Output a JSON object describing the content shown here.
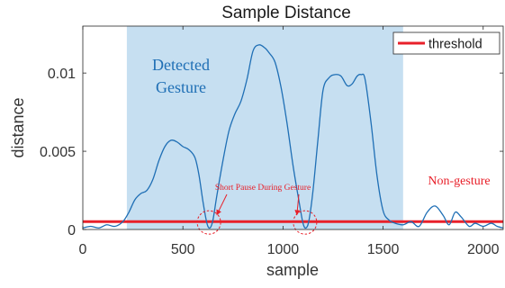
{
  "chart_data": {
    "type": "line",
    "title": "Sample Distance",
    "xlabel": "sample",
    "ylabel": "distance",
    "xlim": [
      0,
      2100
    ],
    "ylim": [
      0,
      0.013
    ],
    "xticks": [
      0,
      500,
      1000,
      1500,
      2000
    ],
    "xtick_labels": [
      "0",
      "500",
      "1000",
      "1500",
      "2000"
    ],
    "yticks": [
      0,
      0.005,
      0.01
    ],
    "ytick_labels": [
      "0",
      "0.005",
      "0.01"
    ],
    "grid": false,
    "legend": {
      "position": "top-right",
      "entries": [
        "threshold"
      ]
    },
    "threshold": {
      "name": "threshold",
      "value": 0.0005,
      "color": "#e8202a"
    },
    "series": [
      {
        "color": "#1f6fb5",
        "points": [
          [
            0,
            0.0001
          ],
          [
            40,
            0.0002
          ],
          [
            80,
            0.0001
          ],
          [
            120,
            0.0003
          ],
          [
            160,
            0.0002
          ],
          [
            200,
            0.0005
          ],
          [
            230,
            0.0011
          ],
          [
            260,
            0.0019
          ],
          [
            290,
            0.0023
          ],
          [
            320,
            0.0025
          ],
          [
            350,
            0.0032
          ],
          [
            380,
            0.0044
          ],
          [
            410,
            0.0053
          ],
          [
            440,
            0.0057
          ],
          [
            470,
            0.0056
          ],
          [
            500,
            0.0053
          ],
          [
            530,
            0.0051
          ],
          [
            560,
            0.0046
          ],
          [
            580,
            0.0035
          ],
          [
            600,
            0.0018
          ],
          [
            620,
            0.0004
          ],
          [
            635,
            0.0001
          ],
          [
            650,
            0.0006
          ],
          [
            670,
            0.0022
          ],
          [
            700,
            0.0044
          ],
          [
            730,
            0.0063
          ],
          [
            760,
            0.0074
          ],
          [
            790,
            0.0082
          ],
          [
            820,
            0.0096
          ],
          [
            850,
            0.0114
          ],
          [
            880,
            0.0118
          ],
          [
            910,
            0.0116
          ],
          [
            930,
            0.0113
          ],
          [
            960,
            0.0107
          ],
          [
            990,
            0.0091
          ],
          [
            1020,
            0.0068
          ],
          [
            1050,
            0.0041
          ],
          [
            1080,
            0.0018
          ],
          [
            1100,
            0.0004
          ],
          [
            1115,
            0.0001
          ],
          [
            1130,
            0.0006
          ],
          [
            1150,
            0.0025
          ],
          [
            1175,
            0.0058
          ],
          [
            1200,
            0.0089
          ],
          [
            1230,
            0.0097
          ],
          [
            1260,
            0.0099
          ],
          [
            1290,
            0.0098
          ],
          [
            1320,
            0.0092
          ],
          [
            1345,
            0.0093
          ],
          [
            1370,
            0.0098
          ],
          [
            1390,
            0.0099
          ],
          [
            1410,
            0.0096
          ],
          [
            1440,
            0.0068
          ],
          [
            1470,
            0.0034
          ],
          [
            1500,
            0.0012
          ],
          [
            1530,
            0.0006
          ],
          [
            1560,
            0.0004
          ],
          [
            1600,
            0.0003
          ],
          [
            1640,
            0.0005
          ],
          [
            1680,
            0.0002
          ],
          [
            1720,
            0.0011
          ],
          [
            1760,
            0.0015
          ],
          [
            1800,
            0.0009
          ],
          [
            1830,
            0.0003
          ],
          [
            1860,
            0.0011
          ],
          [
            1890,
            0.0008
          ],
          [
            1930,
            0.0002
          ],
          [
            1960,
            0.0004
          ],
          [
            2000,
            0.0002
          ],
          [
            2040,
            0.0004
          ],
          [
            2070,
            0.0002
          ],
          [
            2100,
            0.0001
          ]
        ]
      }
    ],
    "highlight_region": {
      "x0": 220,
      "x1": 1600,
      "color": "#c6dff1"
    },
    "pause_markers": [
      {
        "x": 630,
        "y": 0.00045
      },
      {
        "x": 1110,
        "y": 0.00045
      }
    ],
    "annotations": {
      "detected_line1": "Detected",
      "detected_line2": "Gesture",
      "short_pause": "Short Pause During Gesture",
      "non_gesture": "Non-gesture"
    },
    "annotation_colors": {
      "detected": "#1f6fb5",
      "pause": "#e8202a",
      "non_gesture": "#e8202a"
    }
  }
}
